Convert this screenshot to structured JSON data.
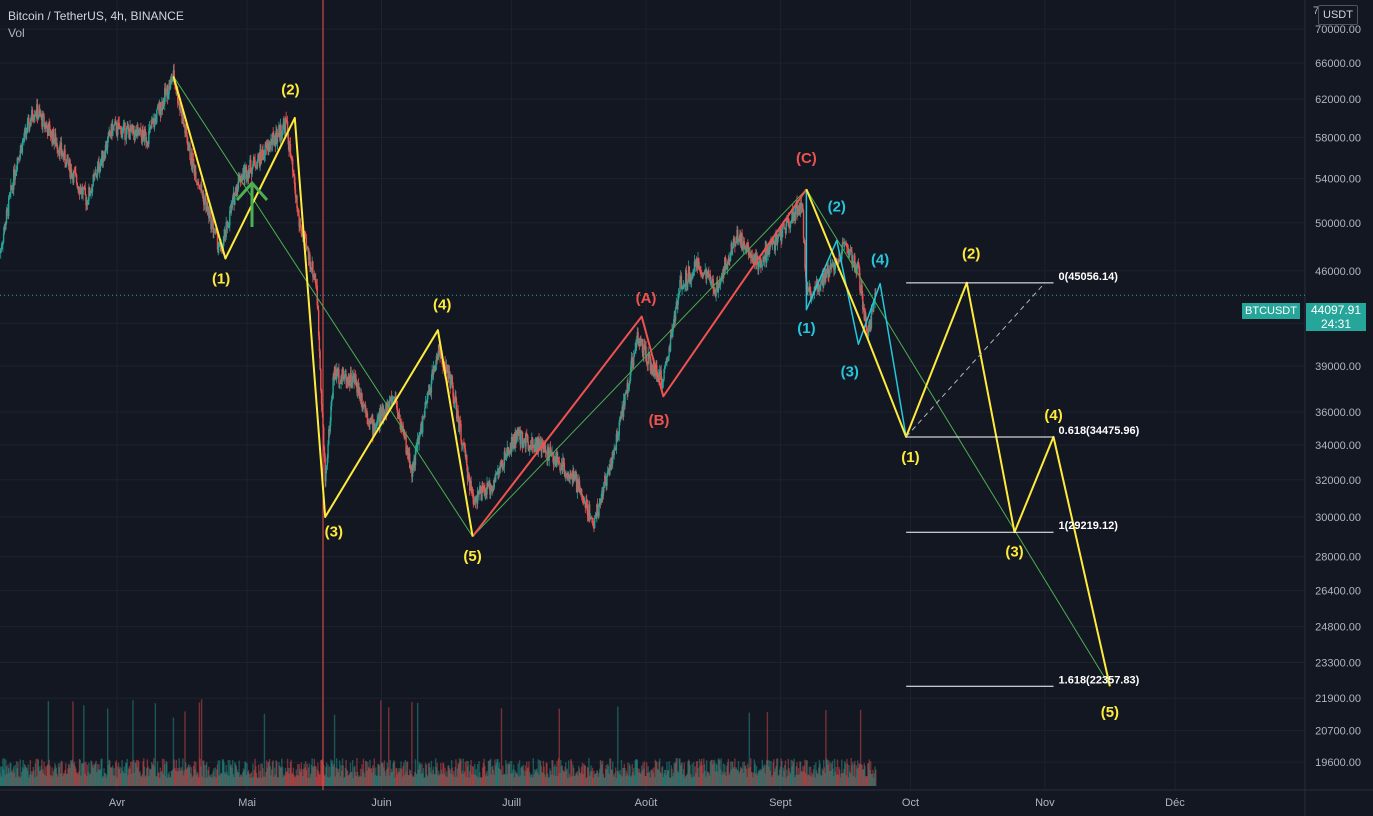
{
  "header": {
    "title": "Bitcoin / TetherUS, 4h, BINANCE",
    "subtitle": "Vol"
  },
  "currency_button": "USDT",
  "last_price": {
    "symbol": "BTCUSDT",
    "price": "44097.91",
    "countdown": "24:31"
  },
  "colors": {
    "bg": "#131722",
    "up": "#26a69a",
    "down": "#ef5350",
    "yellow": "#ffeb3b",
    "green": "#4caf50",
    "red": "#ef5350",
    "cyan": "#26c6da",
    "grid": "#1e222d"
  },
  "chart_data": {
    "type": "candlestick",
    "y_scale": "log",
    "ylim": [
      19000,
      73000
    ],
    "y_ticks": [
      19600,
      20700,
      21900,
      23300,
      24800,
      26400,
      28000,
      30000,
      32000,
      34000,
      36000,
      39000,
      42000,
      46000,
      50000,
      54000,
      58000,
      62000,
      66000,
      70000
    ],
    "y_tick_labels": [
      "19600.00",
      "20700.00",
      "21900.00",
      "23300.00",
      "24800.00",
      "26400.00",
      "28000.00",
      "30000.00",
      "32000.00",
      "34000.00",
      "36000.00",
      "39000.00",
      "42000.00",
      "46000.00",
      "50000.00",
      "54000.00",
      "58000.00",
      "62000.00",
      "66000.00",
      "70000.00"
    ],
    "y_top_partial_label": "7",
    "x_domain": [
      "2021-03-05",
      "2021-12-31"
    ],
    "x_ticks": [
      {
        "date": "2021-04-01",
        "label": "Avr"
      },
      {
        "date": "2021-05-01",
        "label": "Mai"
      },
      {
        "date": "2021-06-01",
        "label": "Juin"
      },
      {
        "date": "2021-07-01",
        "label": "Juill"
      },
      {
        "date": "2021-08-01",
        "label": "Août"
      },
      {
        "date": "2021-09-01",
        "label": "Sept"
      },
      {
        "date": "2021-10-01",
        "label": "Oct"
      },
      {
        "date": "2021-11-01",
        "label": "Nov"
      },
      {
        "date": "2021-12-01",
        "label": "Déc"
      }
    ],
    "price_path": [
      [
        "2021-03-05",
        47500
      ],
      [
        "2021-03-09",
        56000
      ],
      [
        "2021-03-13",
        61000
      ],
      [
        "2021-03-18",
        57500
      ],
      [
        "2021-03-25",
        52000
      ],
      [
        "2021-03-31",
        59000
      ],
      [
        "2021-04-08",
        58000
      ],
      [
        "2021-04-14",
        64500
      ],
      [
        "2021-04-18",
        56000
      ],
      [
        "2021-04-25",
        47500
      ],
      [
        "2021-04-29",
        54000
      ],
      [
        "2021-05-04",
        56000
      ],
      [
        "2021-05-10",
        59500
      ],
      [
        "2021-05-13",
        50000
      ],
      [
        "2021-05-17",
        45000
      ],
      [
        "2021-05-19",
        32000
      ],
      [
        "2021-05-21",
        38500
      ],
      [
        "2021-05-26",
        38000
      ],
      [
        "2021-05-30",
        35000
      ],
      [
        "2021-06-04",
        37000
      ],
      [
        "2021-06-08",
        32500
      ],
      [
        "2021-06-14",
        40000
      ],
      [
        "2021-06-17",
        38000
      ],
      [
        "2021-06-22",
        31000
      ],
      [
        "2021-06-26",
        31500
      ],
      [
        "2021-07-02",
        34500
      ],
      [
        "2021-07-07",
        34000
      ],
      [
        "2021-07-12",
        33000
      ],
      [
        "2021-07-16",
        31800
      ],
      [
        "2021-07-20",
        29700
      ],
      [
        "2021-07-25",
        34000
      ],
      [
        "2021-07-30",
        41000
      ],
      [
        "2021-08-02",
        39000
      ],
      [
        "2021-08-05",
        38000
      ],
      [
        "2021-08-09",
        45000
      ],
      [
        "2021-08-13",
        46500
      ],
      [
        "2021-08-17",
        44500
      ],
      [
        "2021-08-22",
        49000
      ],
      [
        "2021-08-27",
        46500
      ],
      [
        "2021-09-01",
        49000
      ],
      [
        "2021-09-06",
        52000
      ],
      [
        "2021-09-07",
        44000
      ],
      [
        "2021-09-11",
        45500
      ],
      [
        "2021-09-16",
        48000
      ],
      [
        "2021-09-19",
        46000
      ],
      [
        "2021-09-21",
        41000
      ],
      [
        "2021-09-23",
        44097.91
      ]
    ],
    "last_price": 44097.91,
    "fib_levels": [
      {
        "label": "0(45056.14)",
        "value": 45056.14
      },
      {
        "label": "0.618(34475.96)",
        "value": 34475.96
      },
      {
        "label": "1(29219.12)",
        "value": 29219.12
      },
      {
        "label": "1.618(22357.83)",
        "value": 22357.83
      }
    ],
    "wave_labels": [
      {
        "text": "(1)",
        "date": "2021-04-25",
        "price": 45000,
        "color": "yellow"
      },
      {
        "text": "(2)",
        "date": "2021-05-11",
        "price": 62500,
        "color": "yellow"
      },
      {
        "text": "(3)",
        "date": "2021-05-21",
        "price": 29000,
        "color": "yellow"
      },
      {
        "text": "(4)",
        "date": "2021-06-15",
        "price": 43000,
        "color": "yellow"
      },
      {
        "text": "(5)",
        "date": "2021-06-22",
        "price": 27800,
        "color": "yellow"
      },
      {
        "text": "(A)",
        "date": "2021-08-01",
        "price": 43500,
        "color": "red"
      },
      {
        "text": "(B)",
        "date": "2021-08-04",
        "price": 35200,
        "color": "red"
      },
      {
        "text": "(C)",
        "date": "2021-09-07",
        "price": 55500,
        "color": "red"
      },
      {
        "text": "(1)",
        "date": "2021-09-07",
        "price": 41300,
        "color": "cyan"
      },
      {
        "text": "(2)",
        "date": "2021-09-14",
        "price": 51000,
        "color": "cyan"
      },
      {
        "text": "(3)",
        "date": "2021-09-17",
        "price": 38300,
        "color": "cyan"
      },
      {
        "text": "(4)",
        "date": "2021-09-24",
        "price": 46500,
        "color": "cyan"
      },
      {
        "text": "(1)",
        "date": "2021-10-01",
        "price": 33000,
        "color": "yellow"
      },
      {
        "text": "(2)",
        "date": "2021-10-15",
        "price": 47000,
        "color": "yellow"
      },
      {
        "text": "(3)",
        "date": "2021-10-25",
        "price": 28000,
        "color": "yellow"
      },
      {
        "text": "(4)",
        "date": "2021-11-03",
        "price": 35500,
        "color": "yellow"
      },
      {
        "text": "(5)",
        "date": "2021-11-16",
        "price": 21200,
        "color": "yellow"
      }
    ],
    "yellow_path": [
      [
        "2021-04-14",
        64500
      ],
      [
        "2021-04-26",
        47000
      ],
      [
        "2021-05-12",
        60000
      ],
      [
        "2021-05-19",
        30000
      ],
      [
        "2021-06-14",
        41500
      ],
      [
        "2021-06-22",
        29000
      ]
    ],
    "yellow_projection": [
      [
        "2021-09-07",
        53000
      ],
      [
        "2021-09-21",
        41000
      ],
      [
        "2021-09-30",
        34475.96
      ],
      [
        "2021-10-14",
        45056.14
      ],
      [
        "2021-10-25",
        29219.12
      ],
      [
        "2021-11-03",
        34475.96
      ],
      [
        "2021-11-16",
        22357.83
      ]
    ],
    "red_path": [
      [
        "2021-06-22",
        29000
      ],
      [
        "2021-07-31",
        42500
      ],
      [
        "2021-08-05",
        37000
      ],
      [
        "2021-09-07",
        53000
      ]
    ],
    "green_line": [
      [
        "2021-04-14",
        64500
      ],
      [
        "2021-06-22",
        29000
      ],
      [
        "2021-09-07",
        53000
      ],
      [
        "2021-11-16",
        22357.83
      ]
    ],
    "cyan_path": [
      [
        "2021-09-07",
        53000
      ],
      [
        "2021-09-07",
        43000
      ],
      [
        "2021-09-14",
        48500
      ],
      [
        "2021-09-19",
        40500
      ],
      [
        "2021-09-24",
        45000
      ],
      [
        "2021-09-30",
        34475.96
      ]
    ],
    "dashed_line": [
      [
        "2021-09-30",
        34475.96
      ],
      [
        "2021-11-01",
        45056.14
      ]
    ],
    "fib_x_range": [
      "2021-09-30",
      "2021-11-03"
    ],
    "volume_note": "decorative histogram"
  }
}
